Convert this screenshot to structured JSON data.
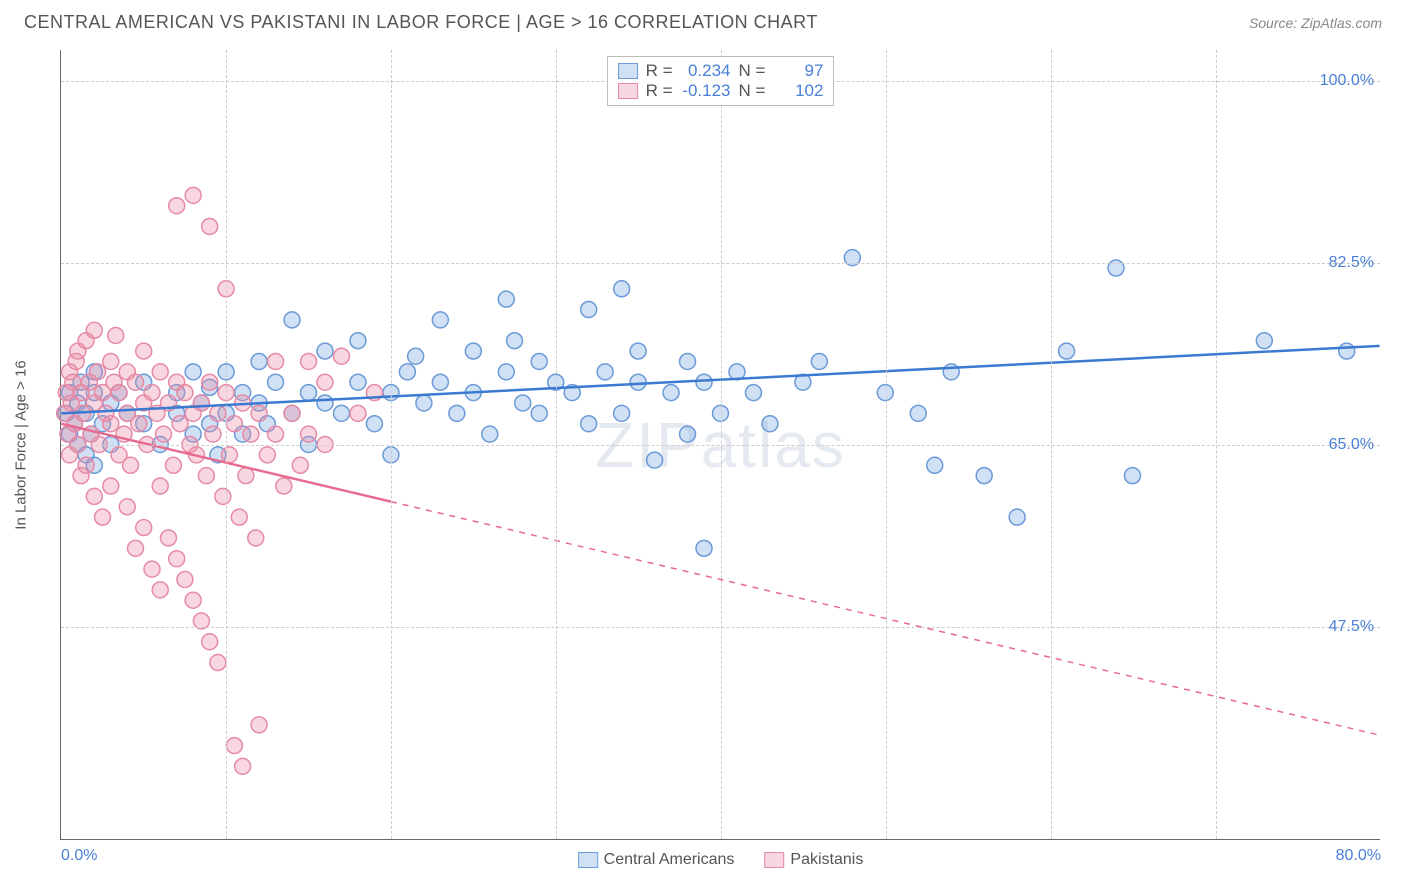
{
  "header": {
    "title": "CENTRAL AMERICAN VS PAKISTANI IN LABOR FORCE | AGE > 16 CORRELATION CHART",
    "source": "Source: ZipAtlas.com"
  },
  "chart": {
    "type": "scatter",
    "watermark": "ZIPatlas",
    "ylabel": "In Labor Force | Age > 16",
    "xlim": [
      0,
      80
    ],
    "ylim": [
      27,
      103
    ],
    "yticks": [
      47.5,
      65.0,
      82.5,
      100.0
    ],
    "ytick_labels": [
      "47.5%",
      "65.0%",
      "82.5%",
      "100.0%"
    ],
    "xticks": [
      0,
      80
    ],
    "xtick_labels": [
      "0.0%",
      "80.0%"
    ],
    "vgrid_x": [
      10,
      20,
      30,
      40,
      50,
      60,
      70
    ],
    "background_color": "#ffffff",
    "grid_color": "#cccccc",
    "axis_color": "#666666",
    "tick_color": "#4a7fd8",
    "marker_radius": 8,
    "series": [
      {
        "name": "Central Americans",
        "R": "0.234",
        "N": "97",
        "fill": "rgba(120,165,225,0.35)",
        "stroke": "#6a9ad8",
        "line_color": "#3b7ad0",
        "trend": {
          "x1": 0,
          "y1": 68,
          "x2": 80,
          "y2": 74.5,
          "solid_until_x": 80
        },
        "points": [
          [
            0.3,
            68
          ],
          [
            0.5,
            70
          ],
          [
            0.5,
            66
          ],
          [
            0.8,
            67
          ],
          [
            1,
            69
          ],
          [
            1,
            65
          ],
          [
            1.2,
            71
          ],
          [
            1.5,
            68
          ],
          [
            1.5,
            64
          ],
          [
            1.8,
            66
          ],
          [
            2,
            70
          ],
          [
            2,
            63
          ],
          [
            2,
            72
          ],
          [
            2.5,
            67
          ],
          [
            3,
            69
          ],
          [
            3,
            65
          ],
          [
            3.5,
            70
          ],
          [
            4,
            68
          ],
          [
            5,
            67
          ],
          [
            5,
            71
          ],
          [
            6,
            65
          ],
          [
            7,
            68
          ],
          [
            7,
            70
          ],
          [
            8,
            66
          ],
          [
            8,
            72
          ],
          [
            8.5,
            69
          ],
          [
            9,
            67
          ],
          [
            9,
            70.5
          ],
          [
            9.5,
            64
          ],
          [
            10,
            68
          ],
          [
            10,
            72
          ],
          [
            11,
            70
          ],
          [
            11,
            66
          ],
          [
            12,
            69
          ],
          [
            12,
            73
          ],
          [
            12.5,
            67
          ],
          [
            13,
            71
          ],
          [
            14,
            68
          ],
          [
            14,
            77
          ],
          [
            15,
            70
          ],
          [
            15,
            65
          ],
          [
            16,
            69
          ],
          [
            16,
            74
          ],
          [
            17,
            68
          ],
          [
            18,
            71
          ],
          [
            18,
            75
          ],
          [
            19,
            67
          ],
          [
            20,
            70
          ],
          [
            20,
            64
          ],
          [
            21,
            72
          ],
          [
            21.5,
            73.5
          ],
          [
            22,
            69
          ],
          [
            23,
            71
          ],
          [
            23,
            77
          ],
          [
            24,
            68
          ],
          [
            25,
            70
          ],
          [
            25,
            74
          ],
          [
            26,
            66
          ],
          [
            27,
            72
          ],
          [
            27,
            79
          ],
          [
            27.5,
            75
          ],
          [
            28,
            69
          ],
          [
            29,
            73
          ],
          [
            29,
            68
          ],
          [
            30,
            71
          ],
          [
            31,
            70
          ],
          [
            32,
            67
          ],
          [
            32,
            78
          ],
          [
            33,
            72
          ],
          [
            34,
            80
          ],
          [
            34,
            68
          ],
          [
            35,
            71
          ],
          [
            35,
            74
          ],
          [
            36,
            63.5
          ],
          [
            37,
            70
          ],
          [
            38,
            66
          ],
          [
            38,
            73
          ],
          [
            39,
            71
          ],
          [
            39,
            55
          ],
          [
            40,
            68
          ],
          [
            41,
            72
          ],
          [
            42,
            70
          ],
          [
            43,
            67
          ],
          [
            45,
            71
          ],
          [
            46,
            73
          ],
          [
            48,
            83
          ],
          [
            50,
            70
          ],
          [
            52,
            68
          ],
          [
            53,
            63
          ],
          [
            54,
            72
          ],
          [
            56,
            62
          ],
          [
            58,
            58
          ],
          [
            61,
            74
          ],
          [
            64,
            82
          ],
          [
            65,
            62
          ],
          [
            73,
            75
          ],
          [
            78,
            74
          ]
        ]
      },
      {
        "name": "Pakistanis",
        "R": "-0.123",
        "N": "102",
        "fill": "rgba(235,140,165,0.35)",
        "stroke": "#e68aa5",
        "line_color": "#e86b8f",
        "trend": {
          "x1": 0,
          "y1": 67,
          "x2": 80,
          "y2": 37,
          "solid_until_x": 20
        },
        "points": [
          [
            0.2,
            68
          ],
          [
            0.3,
            70
          ],
          [
            0.4,
            66
          ],
          [
            0.5,
            72
          ],
          [
            0.5,
            64
          ],
          [
            0.6,
            69
          ],
          [
            0.7,
            71
          ],
          [
            0.8,
            67
          ],
          [
            0.9,
            73
          ],
          [
            1,
            65
          ],
          [
            1,
            74
          ],
          [
            1.2,
            62
          ],
          [
            1.2,
            70
          ],
          [
            1.3,
            68
          ],
          [
            1.5,
            75
          ],
          [
            1.5,
            63
          ],
          [
            1.7,
            71
          ],
          [
            1.8,
            66
          ],
          [
            2,
            69
          ],
          [
            2,
            76
          ],
          [
            2,
            60
          ],
          [
            2.2,
            72
          ],
          [
            2.3,
            65
          ],
          [
            2.5,
            70
          ],
          [
            2.5,
            58
          ],
          [
            2.7,
            68
          ],
          [
            3,
            73
          ],
          [
            3,
            61
          ],
          [
            3,
            67
          ],
          [
            3.2,
            71
          ],
          [
            3.3,
            75.5
          ],
          [
            3.5,
            64
          ],
          [
            3.5,
            70
          ],
          [
            3.8,
            66
          ],
          [
            4,
            72
          ],
          [
            4,
            59
          ],
          [
            4,
            68
          ],
          [
            4.2,
            63
          ],
          [
            4.5,
            71
          ],
          [
            4.5,
            55
          ],
          [
            4.7,
            67
          ],
          [
            5,
            69
          ],
          [
            5,
            74
          ],
          [
            5,
            57
          ],
          [
            5.2,
            65
          ],
          [
            5.5,
            70
          ],
          [
            5.5,
            53
          ],
          [
            5.8,
            68
          ],
          [
            6,
            72
          ],
          [
            6,
            61
          ],
          [
            6,
            51
          ],
          [
            6.2,
            66
          ],
          [
            6.5,
            69
          ],
          [
            6.5,
            56
          ],
          [
            6.8,
            63
          ],
          [
            7,
            71
          ],
          [
            7,
            54
          ],
          [
            7,
            88
          ],
          [
            7.2,
            67
          ],
          [
            7.5,
            70
          ],
          [
            7.5,
            52
          ],
          [
            7.8,
            65
          ],
          [
            8,
            68
          ],
          [
            8,
            89
          ],
          [
            8,
            50
          ],
          [
            8.2,
            64
          ],
          [
            8.5,
            69
          ],
          [
            8.5,
            48
          ],
          [
            8.8,
            62
          ],
          [
            9,
            71
          ],
          [
            9,
            86
          ],
          [
            9,
            46
          ],
          [
            9.2,
            66
          ],
          [
            9.5,
            68
          ],
          [
            9.5,
            44
          ],
          [
            9.8,
            60
          ],
          [
            10,
            70
          ],
          [
            10,
            80
          ],
          [
            10.2,
            64
          ],
          [
            10.5,
            67
          ],
          [
            10.5,
            36
          ],
          [
            10.8,
            58
          ],
          [
            11,
            69
          ],
          [
            11,
            34
          ],
          [
            11.2,
            62
          ],
          [
            11.5,
            66
          ],
          [
            11.8,
            56
          ],
          [
            12,
            68
          ],
          [
            12,
            38
          ],
          [
            12.5,
            64
          ],
          [
            13,
            66
          ],
          [
            13,
            73
          ],
          [
            13.5,
            61
          ],
          [
            14,
            68
          ],
          [
            14.5,
            63
          ],
          [
            15,
            73
          ],
          [
            15,
            66
          ],
          [
            16,
            71
          ],
          [
            16,
            65
          ],
          [
            17,
            73.5
          ],
          [
            18,
            68
          ],
          [
            19,
            70
          ]
        ]
      }
    ],
    "top_legend": {
      "R_label": "R =",
      "N_label": "N ="
    },
    "bottom_legend": {
      "series1": "Central Americans",
      "series2": "Pakistanis"
    }
  }
}
